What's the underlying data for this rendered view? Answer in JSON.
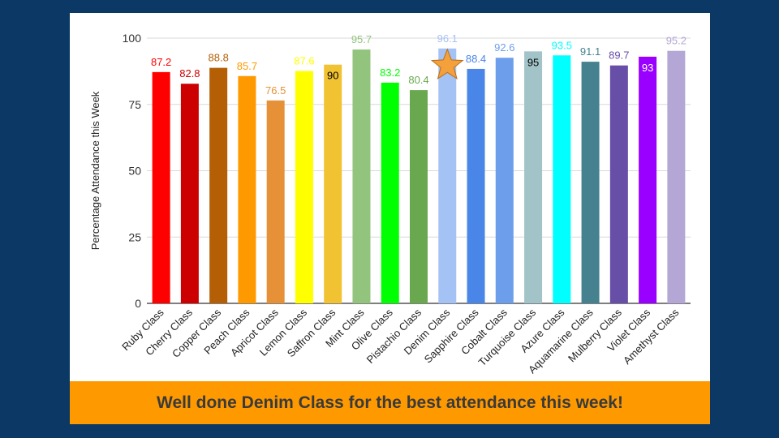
{
  "banner_text": "Well done Denim Class for the best attendance this week!",
  "highlight": {
    "category": "Denim Class",
    "icon": "star-icon",
    "color": "#f4a13c"
  },
  "chart_data": {
    "type": "bar",
    "title": "",
    "xlabel": "",
    "ylabel": "Percentage Attendance this Week",
    "ylim": [
      0,
      100
    ],
    "yticks": [
      0,
      25,
      50,
      75,
      100
    ],
    "grid": true,
    "categories": [
      "Ruby Class",
      "Cherry Class",
      "Copper Class",
      "Peach Class",
      "Apricot Class",
      "Lemon Class",
      "Saffron Class",
      "Mint Class",
      "Olive Class",
      "Pistachio Class",
      "Denim Class",
      "Sapphire Class",
      "Cobalt Class",
      "Turquoise Class",
      "Azure Class",
      "Aquamarine Class",
      "Mulberry Class",
      "Violet Class",
      "Amethyst Class"
    ],
    "values": [
      87.2,
      82.8,
      88.8,
      85.7,
      76.5,
      87.6,
      90,
      95.7,
      83.2,
      80.4,
      96.1,
      88.4,
      92.6,
      95,
      93.5,
      91.1,
      89.7,
      93,
      95.2
    ],
    "data_labels": [
      "87.2",
      "82.8",
      "88.8",
      "85.7",
      "76.5",
      "87.6",
      "90",
      "95.7",
      "83.2",
      "80.4",
      "96.1",
      "88.4",
      "92.6",
      "95",
      "93.5",
      "91.1",
      "89.7",
      "93",
      "95.2"
    ],
    "label_position": [
      "above",
      "above",
      "above",
      "above",
      "above",
      "above",
      "inside",
      "above",
      "above",
      "above",
      "above",
      "above",
      "above",
      "inside",
      "above",
      "above",
      "above",
      "inside",
      "above"
    ],
    "colors": [
      "#ff0000",
      "#cc0000",
      "#b45f06",
      "#ff9900",
      "#e69138",
      "#ffff00",
      "#f1c232",
      "#93c47d",
      "#00ff00",
      "#6aa84f",
      "#a4c2f4",
      "#4a86e8",
      "#6d9eeb",
      "#a2c4c9",
      "#00ffff",
      "#45818e",
      "#674ea7",
      "#9900ff",
      "#b4a7d6"
    ],
    "label_colors": [
      "#ff0000",
      "#cc0000",
      "#b45f06",
      "#ff9900",
      "#e69138",
      "#ffff00",
      "#000000",
      "#93c47d",
      "#00ff00",
      "#6aa84f",
      "#a4c2f4",
      "#4a86e8",
      "#6d9eeb",
      "#000000",
      "#00ffff",
      "#45818e",
      "#674ea7",
      "#ffffff",
      "#b4a7d6"
    ]
  }
}
